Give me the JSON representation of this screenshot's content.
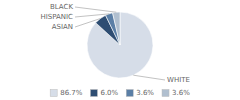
{
  "chart_data": {
    "type": "pie",
    "categories": [
      "WHITE",
      "ASIAN",
      "HISPANIC",
      "BLACK"
    ],
    "values": [
      86.7,
      6.0,
      3.6,
      3.6
    ],
    "value_labels": [
      "86.7%",
      "6.0%",
      "3.6%",
      "3.6%"
    ],
    "colors": [
      "#d6dde8",
      "#2e4d72",
      "#5b7fa6",
      "#b0bfcf"
    ],
    "legend": "bottom"
  }
}
